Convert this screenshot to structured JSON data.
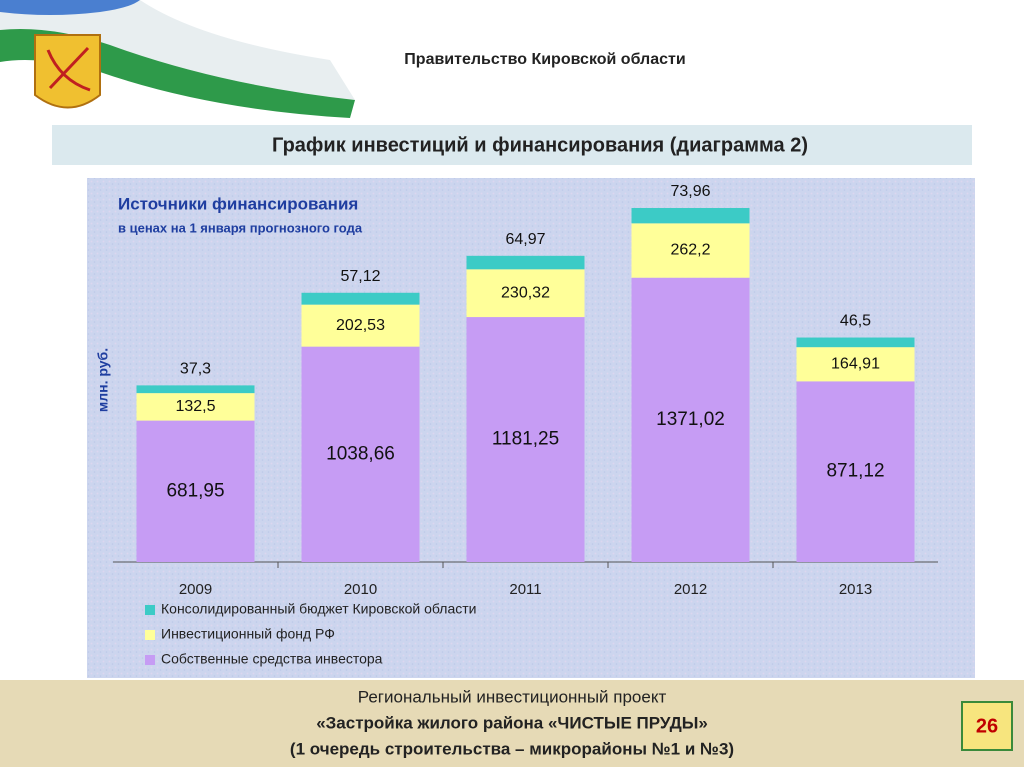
{
  "header": {
    "title": "Правительство Кировской области"
  },
  "slide_title": "График инвестиций и финансирования (диаграмма 2)",
  "chart_data": {
    "type": "stacked_bar",
    "title": "Источники финансирования",
    "subtitle": "в ценах на 1 января прогнозного года",
    "ylabel": "млн. руб.",
    "categories": [
      "2009",
      "2010",
      "2011",
      "2012",
      "2013"
    ],
    "series": [
      {
        "name": "Собственные средства инвестора",
        "color": "#c69cf4",
        "values": [
          681.95,
          1038.66,
          1181.25,
          1371.02,
          871.12
        ],
        "value_labels": [
          "681,95",
          "1038,66",
          "1181,25",
          "1371,02",
          "871,12"
        ]
      },
      {
        "name": "Инвестиционный фонд РФ",
        "color": "#ffff99",
        "values": [
          132.5,
          202.53,
          230.32,
          262.2,
          164.91
        ],
        "value_labels": [
          "132,5",
          "202,53",
          "230,32",
          "262,2",
          "164,91"
        ]
      },
      {
        "name": "Консолидированный бюджет Кировской области",
        "color": "#3ccbc6",
        "values": [
          37.3,
          57.12,
          64.97,
          73.96,
          46.5
        ],
        "value_labels": [
          "37,3",
          "57,12",
          "64,97",
          "73,96",
          "46,5"
        ]
      }
    ]
  },
  "footer": {
    "line1": "Региональный инвестиционный проект",
    "line2": "«Застройка жилого района «ЧИСТЫЕ ПРУДЫ»",
    "line3": "(1 очередь строительства – микрорайоны №1 и №3)",
    "page_number": "26"
  }
}
